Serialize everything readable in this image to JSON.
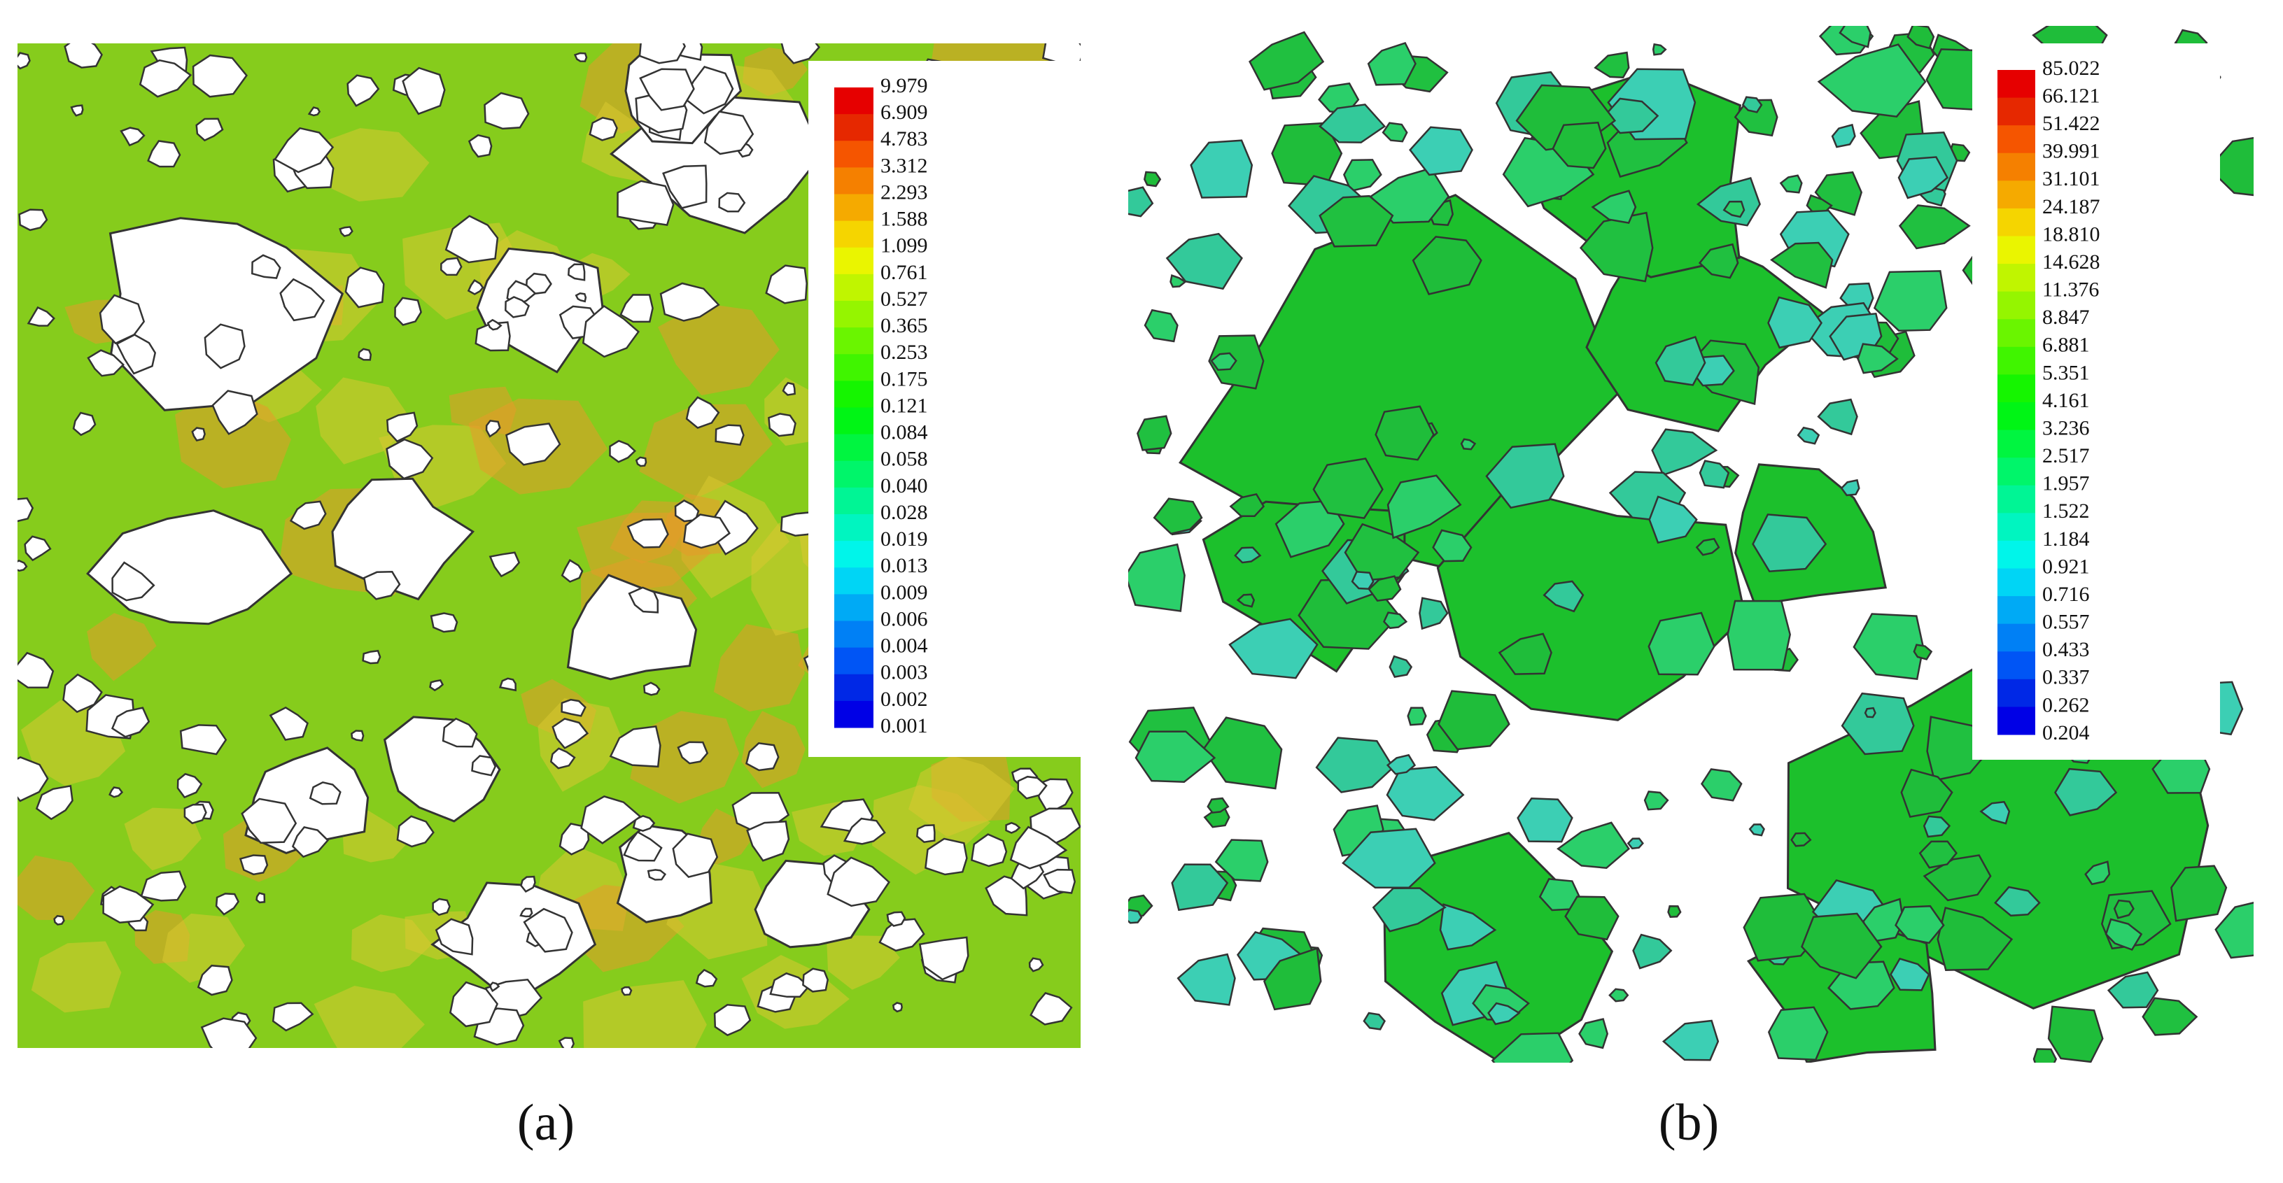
{
  "panels": [
    {
      "caption": "(a)",
      "colorbar": {
        "labels": [
          "9.979",
          "6.909",
          "4.783",
          "3.312",
          "2.293",
          "1.588",
          "1.099",
          "0.761",
          "0.527",
          "0.365",
          "0.253",
          "0.175",
          "0.121",
          "0.084",
          "0.058",
          "0.040",
          "0.028",
          "0.019",
          "0.013",
          "0.009",
          "0.006",
          "0.004",
          "0.003",
          "0.002",
          "0.001"
        ]
      }
    },
    {
      "caption": "(b)",
      "colorbar": {
        "labels": [
          "85.022",
          "66.121",
          "51.422",
          "39.991",
          "31.101",
          "24.187",
          "18.810",
          "14.628",
          "11.376",
          "8.847",
          "6.881",
          "5.351",
          "4.161",
          "3.236",
          "2.517",
          "1.957",
          "1.522",
          "1.184",
          "0.921",
          "0.716",
          "0.557",
          "0.433",
          "0.337",
          "0.262",
          "0.204"
        ]
      }
    }
  ]
}
